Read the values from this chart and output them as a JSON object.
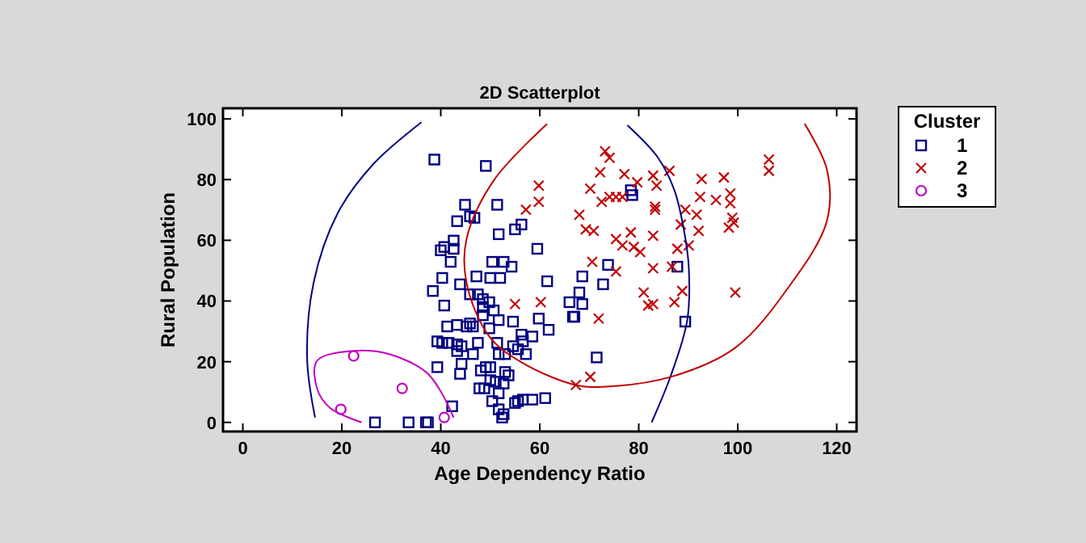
{
  "chart_data": {
    "type": "scatter",
    "title": "2D Scatterplot",
    "xlabel": "Age Dependency Ratio",
    "ylabel": "Rural Population",
    "legend_title": "Cluster",
    "legend": "right",
    "grid": false,
    "xlim": [
      -4,
      124
    ],
    "ylim": [
      -3,
      103.5
    ],
    "xticks": [
      0,
      20,
      40,
      60,
      80,
      100,
      120
    ],
    "yticks": [
      0,
      20,
      40,
      60,
      80,
      100
    ],
    "series": [
      {
        "name": "1",
        "marker": "square",
        "color": "#000080",
        "x": [
          26.7,
          33.5,
          37,
          38.7,
          49.1,
          44.9,
          51.4,
          43.3,
          45.9,
          46.8,
          56.3,
          55,
          51.7,
          42.6,
          42.6,
          40,
          40.7,
          59.5,
          42,
          50.4,
          52.7,
          54.3,
          78.4,
          78.7,
          73.8,
          68.6,
          72.8,
          68,
          68.6,
          67,
          87.8,
          89.4,
          71.5,
          61.5,
          40.3,
          47.2,
          50,
          52,
          43.9,
          38.4,
          45.9,
          47.5,
          48.5,
          49.8,
          40.7,
          48.5,
          50.7,
          48.5,
          66,
          66.7,
          59.8,
          54.6,
          51.7,
          45.9,
          46.5,
          45.2,
          43.3,
          41.3,
          49.8,
          61.8,
          58.5,
          56.3,
          56.6,
          47.5,
          44.2,
          43.3,
          41.6,
          39.3,
          40.3,
          51.4,
          54.6,
          55.6,
          51.7,
          53,
          57.2,
          43.3,
          46.5,
          39.3,
          44.2,
          43.9,
          48.1,
          49.1,
          50,
          53,
          53.7,
          50,
          51.1,
          52.7,
          48.8,
          47.8,
          51.7,
          56.6,
          58.5,
          61.1,
          50.4,
          55,
          55.6,
          51.7,
          52.7,
          52.4,
          42.3,
          37.4
        ],
        "values": [
          0,
          0,
          0,
          86.6,
          84.5,
          71.7,
          71.7,
          66.3,
          67.9,
          67.4,
          65.2,
          63.6,
          62,
          59.9,
          57.2,
          56.7,
          57.8,
          57.2,
          52.9,
          52.9,
          52.9,
          51.3,
          76.5,
          74.9,
          51.9,
          48.1,
          45.5,
          42.8,
          39,
          34.8,
          51.3,
          33.2,
          21.4,
          46.5,
          47.6,
          48.1,
          47.6,
          47.6,
          45.5,
          43.3,
          42.2,
          42.2,
          40.6,
          39.6,
          38.5,
          38,
          36.9,
          35.3,
          39.6,
          34.8,
          34.2,
          33.2,
          33.7,
          32.6,
          31.6,
          31.6,
          32.1,
          31.6,
          31,
          30.5,
          28.3,
          28.9,
          26.7,
          26.2,
          25.1,
          25.7,
          26.2,
          26.7,
          26.2,
          26.2,
          25.1,
          24.1,
          22.5,
          22.5,
          22.5,
          23.5,
          22.5,
          18.2,
          19.3,
          16,
          17.1,
          18.2,
          18.2,
          16.6,
          15.5,
          13.9,
          13.4,
          12.8,
          11.2,
          11.2,
          9.6,
          7.5,
          7.5,
          8,
          7,
          6.4,
          7,
          4.3,
          2.7,
          1.6,
          5.3,
          0
        ]
      },
      {
        "name": "2",
        "marker": "cross",
        "color": "#c00000",
        "x": [
          73.2,
          74.1,
          72.2,
          77.1,
          79.7,
          82.9,
          86.2,
          92.7,
          97.2,
          106.3,
          106.3,
          70.2,
          83.6,
          72.5,
          74.1,
          75.4,
          76.7,
          83.3,
          83.3,
          92.4,
          95.6,
          98.5,
          98.5,
          68,
          89.4,
          91.7,
          98.9,
          99.2,
          98.2,
          88.5,
          92.1,
          69.3,
          70.9,
          78.4,
          82.9,
          75.4,
          76.7,
          79,
          80.3,
          87.8,
          90.1,
          70.6,
          75.4,
          82.9,
          86.7,
          88.8,
          81,
          81.9,
          82.9,
          87.2,
          99.5,
          71.9,
          70.2,
          67.3,
          59.8,
          59.8,
          57.2,
          55,
          60.2
        ],
        "values": [
          89.3,
          87.2,
          82.4,
          81.8,
          79.1,
          81.3,
          82.9,
          80.2,
          80.7,
          86.6,
          82.9,
          77,
          78,
          72.7,
          74.3,
          74.3,
          74.3,
          71.1,
          70.1,
          74.3,
          73.3,
          75.4,
          72.2,
          68.4,
          70.1,
          68.4,
          67.4,
          65.8,
          64.2,
          65.2,
          63.1,
          63.6,
          63.1,
          62.6,
          61.5,
          60.4,
          58.3,
          57.8,
          56.1,
          57.2,
          58.3,
          52.9,
          49.7,
          50.8,
          51.3,
          43.3,
          42.8,
          38.5,
          39,
          39.6,
          42.8,
          34.2,
          15,
          12.3,
          78,
          72.7,
          70.1,
          39,
          39.6
        ]
      },
      {
        "name": "3",
        "marker": "circle",
        "color": "#c000c0",
        "x": [
          19.8,
          22.4,
          32.2,
          40.7
        ],
        "values": [
          4.3,
          21.9,
          11.2,
          1.6
        ]
      },
      {
        "type": "line",
        "marker": "none",
        "color": "#000080",
        "x": [
          14.6,
          13,
          14.3,
          19.2,
          26.3,
          36.1,
          null,
          77.7,
          83.9,
          87.2,
          89.1,
          90.1,
          89.8,
          86.5,
          82.6
        ],
        "values": [
          1.6,
          20.9,
          46,
          69,
          85,
          98.9,
          null,
          97.9,
          87.2,
          76.5,
          63.6,
          51.3,
          33.7,
          15.5,
          0
        ]
      },
      {
        "type": "line",
        "marker": "none",
        "color": "#c00000",
        "x": [
          61.5,
          50.7,
          45.2,
          45.2,
          49.8,
          56.3,
          67.3,
          73.5,
          86.5,
          99.5,
          110.2,
          118,
          118,
          113.5
        ],
        "values": [
          98.4,
          79.7,
          60.4,
          46,
          28.3,
          19.8,
          12.3,
          11.8,
          15,
          24.6,
          44.4,
          66.3,
          83.4,
          98.4
        ]
      },
      {
        "type": "line",
        "marker": "none",
        "color": "#c000c0",
        "x": [
          24,
          17.6,
          15,
          15,
          22.1,
          29.6,
          37,
          40,
          42.6
        ],
        "values": [
          0,
          4.8,
          11.2,
          20.3,
          23.5,
          22.5,
          16.6,
          10.2,
          1.6
        ]
      }
    ]
  }
}
